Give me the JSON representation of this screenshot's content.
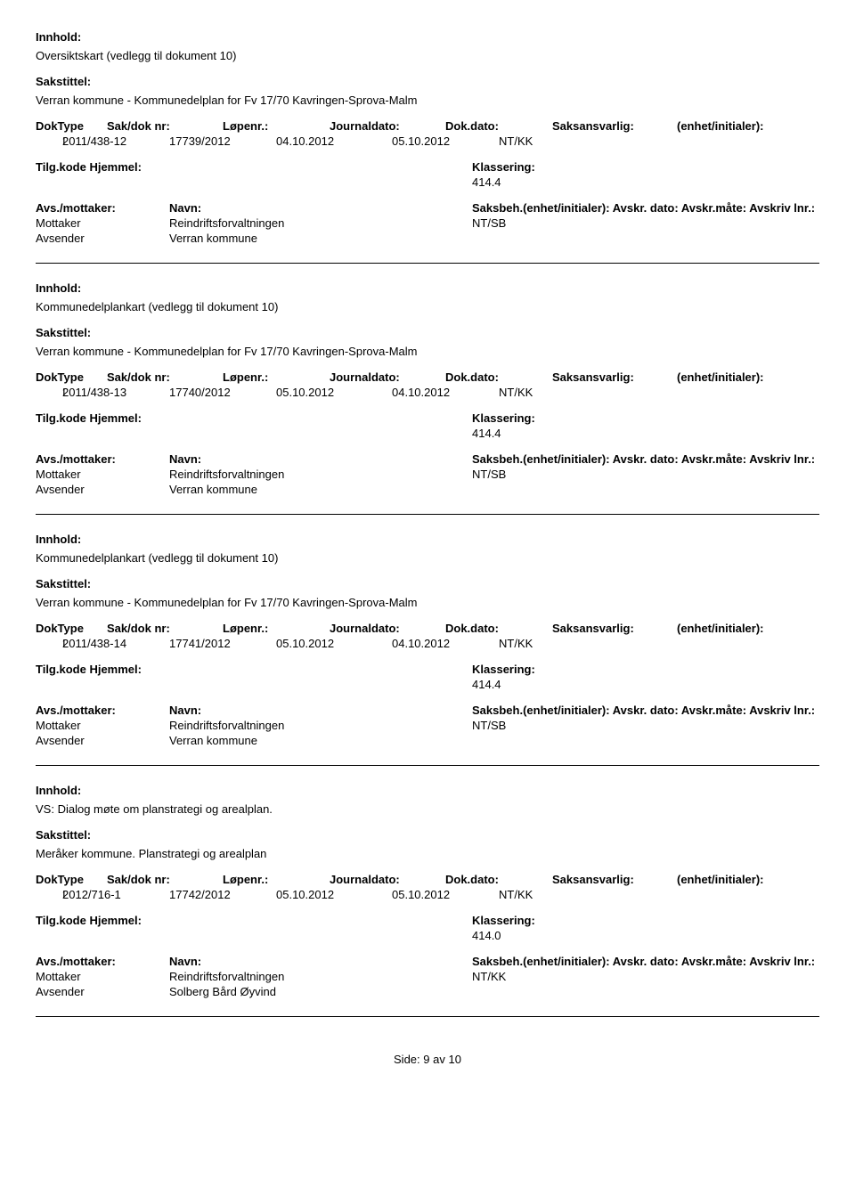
{
  "labels": {
    "innhold": "Innhold:",
    "sakstittel": "Sakstittel:",
    "doktype": "DokType",
    "sakdoknr": "Sak/dok nr:",
    "lopenr": "Løpenr.:",
    "journaldato": "Journaldato:",
    "dokdato": "Dok.dato:",
    "saksansvarlig": "Saksansvarlig:",
    "enhet_initialer": "(enhet/initialer):",
    "tilgkode": "Tilg.kode",
    "hjemmel": "Hjemmel:",
    "klassering": "Klassering:",
    "avs_mottaker": "Avs./mottaker:",
    "navn": "Navn:",
    "saksbeh": "Saksbeh.(enhet/initialer):",
    "avskr_dato": "Avskr. dato:",
    "avskr_mate": "Avskr.måte:",
    "avskriv_lnr": "Avskriv lnr.:",
    "mottaker": "Mottaker",
    "avsender": "Avsender"
  },
  "records": [
    {
      "innhold": "Oversiktskart (vedlegg til dokument 10)",
      "sakstittel": "Verran kommune - Kommunedelplan for Fv 17/70 Kavringen-Sprova-Malm",
      "doktype": "I",
      "sakdoknr": "2011/438-12",
      "lopenr": "17739/2012",
      "journaldato": "04.10.2012",
      "dokdato": "05.10.2012",
      "saksansvarlig": "NT/KK",
      "klassering": "414.4",
      "mottaker": "Reindriftsforvaltningen",
      "saksbeh": "NT/SB",
      "avsender": "Verran kommune"
    },
    {
      "innhold": "Kommunedelplankart (vedlegg til dokument 10)",
      "sakstittel": "Verran kommune - Kommunedelplan for Fv 17/70 Kavringen-Sprova-Malm",
      "doktype": "I",
      "sakdoknr": "2011/438-13",
      "lopenr": "17740/2012",
      "journaldato": "05.10.2012",
      "dokdato": "04.10.2012",
      "saksansvarlig": "NT/KK",
      "klassering": "414.4",
      "mottaker": "Reindriftsforvaltningen",
      "saksbeh": "NT/SB",
      "avsender": "Verran kommune"
    },
    {
      "innhold": "Kommunedelplankart (vedlegg til dokument 10)",
      "sakstittel": "Verran kommune - Kommunedelplan for Fv 17/70 Kavringen-Sprova-Malm",
      "doktype": "I",
      "sakdoknr": "2011/438-14",
      "lopenr": "17741/2012",
      "journaldato": "05.10.2012",
      "dokdato": "04.10.2012",
      "saksansvarlig": "NT/KK",
      "klassering": "414.4",
      "mottaker": "Reindriftsforvaltningen",
      "saksbeh": "NT/SB",
      "avsender": "Verran kommune"
    },
    {
      "innhold": "VS: Dialog møte om planstrategi og arealplan.",
      "sakstittel": "Meråker kommune. Planstrategi og arealplan",
      "doktype": "I",
      "sakdoknr": "2012/716-1",
      "lopenr": "17742/2012",
      "journaldato": "05.10.2012",
      "dokdato": "05.10.2012",
      "saksansvarlig": "NT/KK",
      "klassering": "414.0",
      "mottaker": "Reindriftsforvaltningen",
      "saksbeh": "NT/KK",
      "avsender": "Solberg Bård Øyvind"
    }
  ],
  "footer": {
    "side_label": "Side:",
    "current": "9",
    "av": "av",
    "total": "10"
  }
}
